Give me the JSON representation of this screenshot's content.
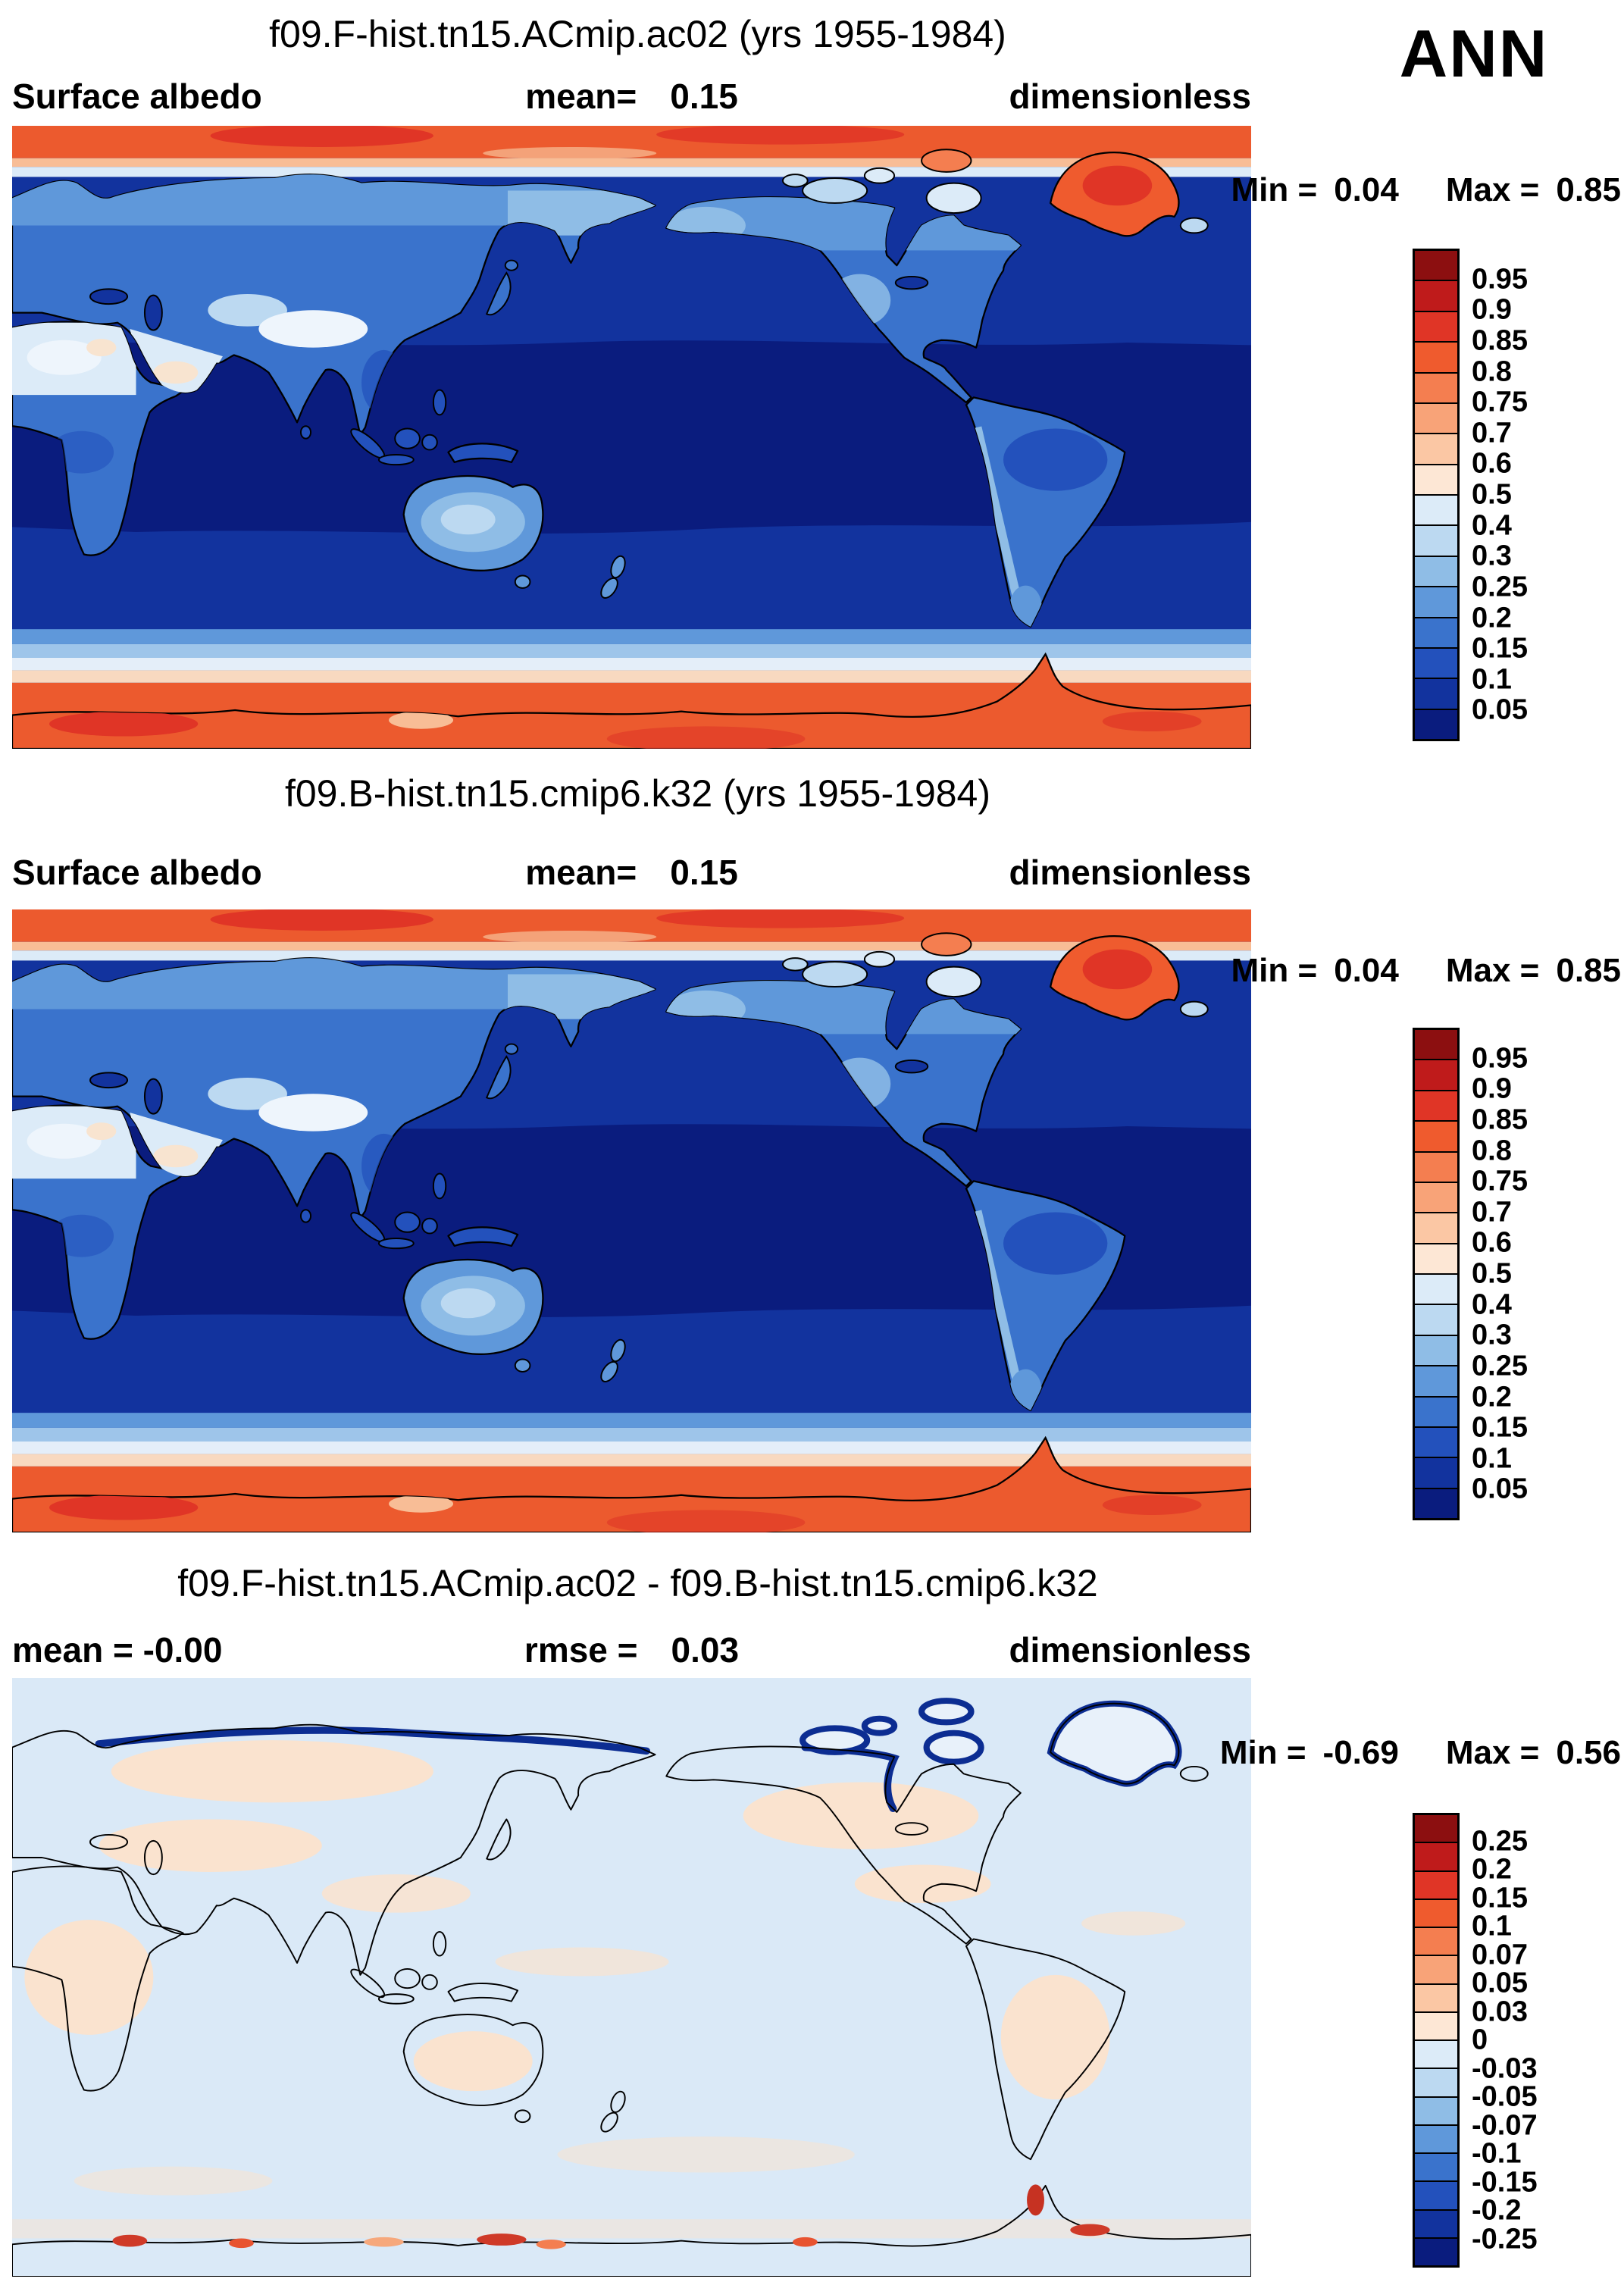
{
  "season_label": "ANN",
  "panels": [
    {
      "title": "f09.F-hist.tn15.ACmip.ac02 (yrs 1955-1984)",
      "header": {
        "left": "Surface albedo",
        "center_label": "mean=",
        "center_value": "0.15",
        "right": "dimensionless"
      },
      "stats": {
        "min_label": "Min =",
        "min_value": "0.04",
        "max_label": "Max =",
        "max_value": "0.85"
      },
      "colorbar": {
        "labels": [
          "0.95",
          "0.9",
          "0.85",
          "0.8",
          "0.75",
          "0.7",
          "0.6",
          "0.5",
          "0.4",
          "0.3",
          "0.25",
          "0.2",
          "0.15",
          "0.1",
          "0.05"
        ],
        "colors": [
          "#8c0f10",
          "#bf1b1b",
          "#e03526",
          "#ef5b2e",
          "#f47e50",
          "#f8a378",
          "#fbc7a4",
          "#fde7d5",
          "#dcebf8",
          "#bcd9f1",
          "#8fbde6",
          "#5f98da",
          "#3a73cc",
          "#2351bc",
          "#12339e",
          "#0a1c7e"
        ]
      }
    },
    {
      "title": "f09.B-hist.tn15.cmip6.k32 (yrs 1955-1984)",
      "header": {
        "left": "Surface albedo",
        "center_label": "mean=",
        "center_value": "0.15",
        "right": "dimensionless"
      },
      "stats": {
        "min_label": "Min =",
        "min_value": "0.04",
        "max_label": "Max =",
        "max_value": "0.85"
      },
      "colorbar": {
        "labels": [
          "0.95",
          "0.9",
          "0.85",
          "0.8",
          "0.75",
          "0.7",
          "0.6",
          "0.5",
          "0.4",
          "0.3",
          "0.25",
          "0.2",
          "0.15",
          "0.1",
          "0.05"
        ],
        "colors": [
          "#8c0f10",
          "#bf1b1b",
          "#e03526",
          "#ef5b2e",
          "#f47e50",
          "#f8a378",
          "#fbc7a4",
          "#fde7d5",
          "#dcebf8",
          "#bcd9f1",
          "#8fbde6",
          "#5f98da",
          "#3a73cc",
          "#2351bc",
          "#12339e",
          "#0a1c7e"
        ]
      }
    },
    {
      "title": "f09.F-hist.tn15.ACmip.ac02 - f09.B-hist.tn15.cmip6.k32",
      "header": {
        "left": "mean = -0.00",
        "center_label": "rmse =",
        "center_value": "0.03",
        "right": "dimensionless"
      },
      "stats": {
        "min_label": "Min =",
        "min_value": "-0.69",
        "max_label": "Max =",
        "max_value": "0.56"
      },
      "colorbar": {
        "labels": [
          "0.25",
          "0.2",
          "0.15",
          "0.1",
          "0.07",
          "0.05",
          "0.03",
          "0",
          "-0.03",
          "-0.05",
          "-0.07",
          "-0.1",
          "-0.15",
          "-0.2",
          "-0.25"
        ],
        "colors": [
          "#8c0f10",
          "#bf1b1b",
          "#e03526",
          "#ef5b2e",
          "#f47e50",
          "#f8a378",
          "#fbc7a4",
          "#fde7d5",
          "#dcebf8",
          "#bcd9f1",
          "#8fbde6",
          "#5f98da",
          "#3a73cc",
          "#2351bc",
          "#12339e",
          "#0a1c7e"
        ]
      }
    }
  ],
  "chart_data": [
    {
      "type": "heatmap",
      "title": "f09.F-hist.tn15.ACmip.ac02 (yrs 1955-1984)",
      "variable": "Surface albedo",
      "season": "ANN",
      "units": "dimensionless",
      "mean": 0.15,
      "min": 0.04,
      "max": 0.85,
      "contour_levels": [
        0.05,
        0.1,
        0.15,
        0.2,
        0.25,
        0.3,
        0.4,
        0.5,
        0.6,
        0.7,
        0.75,
        0.8,
        0.85,
        0.9,
        0.95
      ],
      "palette": "blue(low) to red(high)",
      "extent": {
        "lon": [
          0,
          360
        ],
        "lat": [
          -90,
          90
        ]
      },
      "features": "dark blue (0.05-0.1) over ice-free ocean, mid blue (0.1-0.3) over vegetated land, pale (0.3-0.6) over Sahara, Arabia and Tibet, orange-red (0.6-0.9) over Arctic sea ice, Greenland and Antarctica"
    },
    {
      "type": "heatmap",
      "title": "f09.B-hist.tn15.cmip6.k32 (yrs 1955-1984)",
      "variable": "Surface albedo",
      "season": "ANN",
      "units": "dimensionless",
      "mean": 0.15,
      "min": 0.04,
      "max": 0.85,
      "contour_levels": [
        0.05,
        0.1,
        0.15,
        0.2,
        0.25,
        0.3,
        0.4,
        0.5,
        0.6,
        0.7,
        0.75,
        0.8,
        0.85,
        0.9,
        0.95
      ],
      "palette": "blue(low) to red(high)",
      "extent": {
        "lon": [
          0,
          360
        ],
        "lat": [
          -90,
          90
        ]
      },
      "features": "same pattern as case 1: dark blue oceans, mid-blue land, pale deserts, orange-red polar ice caps"
    },
    {
      "type": "heatmap",
      "title": "f09.F-hist.tn15.ACmip.ac02 - f09.B-hist.tn15.cmip6.k32",
      "variable": "Surface albedo difference",
      "season": "ANN",
      "units": "dimensionless",
      "mean": -0.0,
      "rmse": 0.03,
      "min": -0.69,
      "max": 0.56,
      "contour_levels": [
        -0.25,
        -0.2,
        -0.15,
        -0.1,
        -0.07,
        -0.05,
        -0.03,
        0,
        0.03,
        0.05,
        0.07,
        0.1,
        0.15,
        0.2,
        0.25
      ],
      "palette": "blue(negative) to red(positive)",
      "extent": {
        "lon": [
          0,
          360
        ],
        "lat": [
          -90,
          90
        ]
      },
      "features": "near zero (within ±0.03) over most of the globe; strong negative (<= -0.25, dark navy) along Arctic coastlines, Canadian Archipelago and Greenland margins; positive (>= 0.1, red) spots along the Antarctic coastline"
    }
  ]
}
